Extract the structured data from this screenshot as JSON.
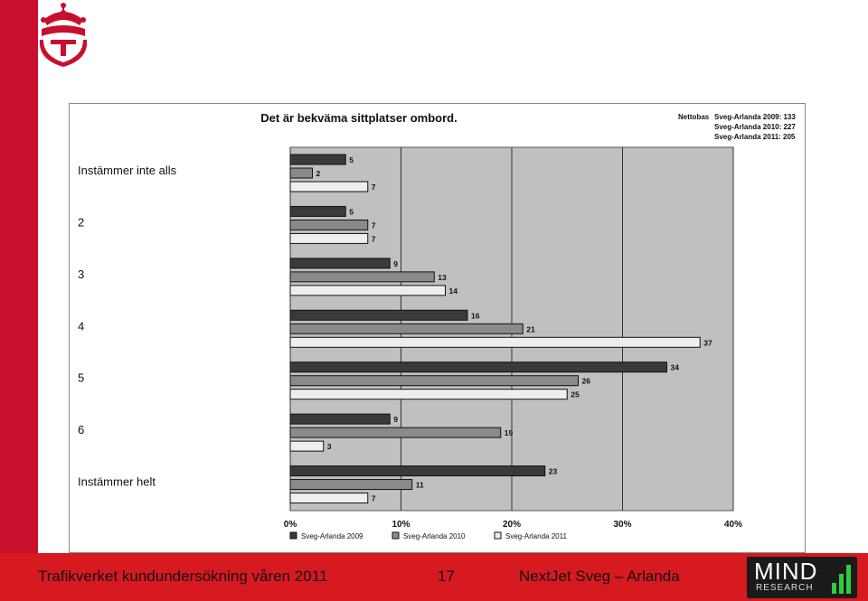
{
  "footer": {
    "left": "Trafikverket kundundersökning våren 2011",
    "page": "17",
    "right": "NextJet  Sveg – Arlanda",
    "brand_main": "MIND",
    "brand_sub": "RESEARCH"
  },
  "colors": {
    "accent_red": "#c8102e",
    "footer_red": "#d71920",
    "plot_bg": "#c0c0c0",
    "series_2009": "#3a3a3a",
    "series_2010": "#8a8a8a",
    "series_2011": "#eeeeee"
  },
  "chart_data": {
    "type": "bar",
    "orientation": "horizontal",
    "title": "Det är bekväma sittplatser ombord.",
    "net_base": {
      "label": "Nettobas",
      "lines": [
        "Sveg-Arlanda 2009: 133",
        "Sveg-Arlanda 2010: 227",
        "Sveg-Arlanda 2011: 205"
      ]
    },
    "categories": [
      "Instämmer inte alls",
      "2",
      "3",
      "4",
      "5",
      "6",
      "Instämmer helt"
    ],
    "series": [
      {
        "name": "Sveg-Arlanda 2009",
        "values": [
          5,
          5,
          9,
          16,
          34,
          9,
          23
        ]
      },
      {
        "name": "Sveg-Arlanda 2010",
        "values": [
          2,
          7,
          13,
          21,
          26,
          19,
          11
        ]
      },
      {
        "name": "Sveg-Arlanda 2011",
        "values": [
          7,
          7,
          14,
          37,
          25,
          3,
          7
        ]
      }
    ],
    "xlim": [
      0,
      40
    ],
    "xticks": [
      "0%",
      "10%",
      "20%",
      "30%",
      "40%"
    ],
    "grid": true,
    "legend": "bottom"
  }
}
